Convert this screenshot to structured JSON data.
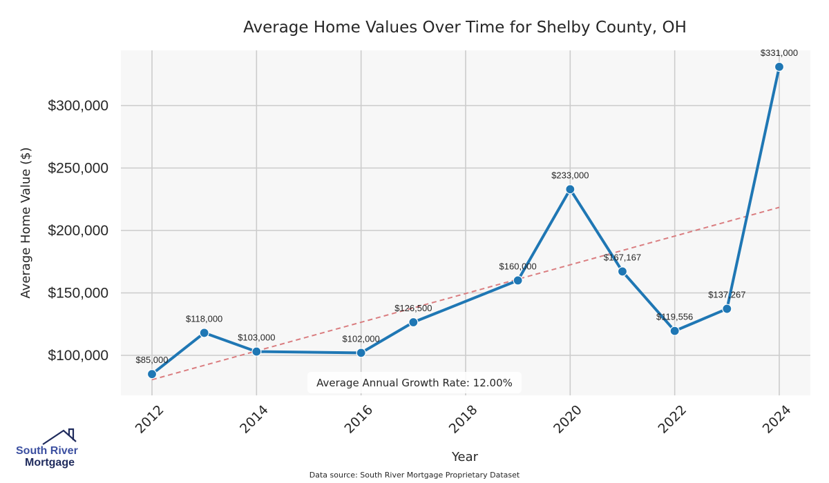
{
  "chart_data": {
    "type": "line",
    "title": "Average Home Values Over Time for Shelby County, OH",
    "xlabel": "Year",
    "ylabel": "Average Home Value ($)",
    "x": [
      2012,
      2013,
      2014,
      2016,
      2017,
      2019,
      2020,
      2021,
      2022,
      2023,
      2024
    ],
    "series": [
      {
        "name": "Average Home Value",
        "color": "#1f77b4",
        "values": [
          85000,
          118000,
          103000,
          102000,
          126500,
          160000,
          233000,
          167167,
          119556,
          137267,
          331000
        ],
        "labels": [
          "$85,000",
          "$118,000",
          "$103,000",
          "$102,000",
          "$126,500",
          "$160,000",
          "$233,000",
          "$167,167",
          "$119,556",
          "$137,267",
          "$331,000"
        ]
      },
      {
        "name": "Trend",
        "color": "#d9777a",
        "style": "dashed",
        "x": [
          2012,
          2024
        ],
        "values": [
          80500,
          218500
        ]
      }
    ],
    "xticks": [
      2012,
      2014,
      2016,
      2018,
      2020,
      2022,
      2024
    ],
    "xtick_labels": [
      "2012",
      "2014",
      "2016",
      "2018",
      "2020",
      "2022",
      "2024"
    ],
    "yticks": [
      100000,
      150000,
      200000,
      250000,
      300000
    ],
    "ytick_labels": [
      "$100,000",
      "$150,000",
      "$200,000",
      "$250,000",
      "$300,000"
    ],
    "xlim": [
      2011.3,
      2024.6
    ],
    "ylim": [
      68000,
      345000
    ],
    "grid": true,
    "annotation": "Average Annual Growth Rate: 12.00%",
    "footnote": "Data source: South River Mortgage Proprietary Dataset"
  },
  "logo": {
    "line1": "South River",
    "line2": "Mortgage",
    "color1": "#3b4fa0",
    "color2": "#1e2a5c"
  }
}
